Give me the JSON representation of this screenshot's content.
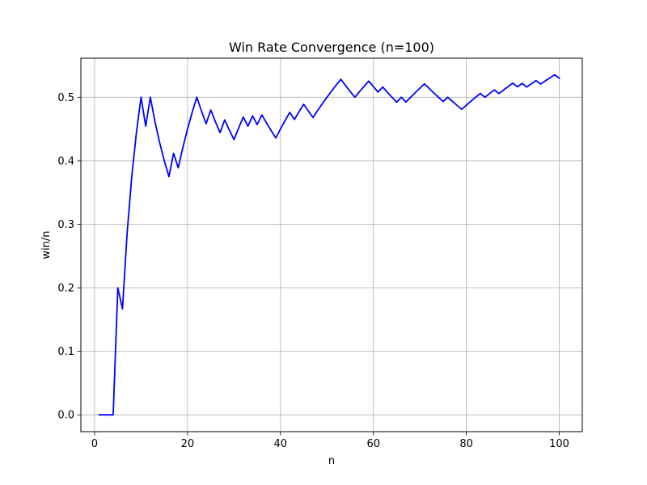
{
  "chart_data": {
    "type": "line",
    "title": "Win Rate Convergence (n=100)",
    "xlabel": "n",
    "ylabel": "win/n",
    "xlim": [
      -2.95,
      104.95
    ],
    "ylim": [
      -0.0265,
      0.5615
    ],
    "grid": true,
    "x_ticks": [
      0,
      20,
      40,
      60,
      80,
      100
    ],
    "x_tick_labels": [
      "0",
      "20",
      "40",
      "60",
      "80",
      "100"
    ],
    "y_ticks": [
      0.0,
      0.1,
      0.2,
      0.3,
      0.4,
      0.5
    ],
    "y_tick_labels": [
      "0.0",
      "0.1",
      "0.2",
      "0.3",
      "0.4",
      "0.5"
    ],
    "series": [
      {
        "color": "#0000ff",
        "x": [
          1,
          2,
          3,
          4,
          5,
          6,
          7,
          8,
          9,
          10,
          11,
          12,
          13,
          14,
          15,
          16,
          17,
          18,
          19,
          20,
          21,
          22,
          23,
          24,
          25,
          26,
          27,
          28,
          29,
          30,
          31,
          32,
          33,
          34,
          35,
          36,
          37,
          38,
          39,
          40,
          41,
          42,
          43,
          44,
          45,
          46,
          47,
          48,
          49,
          50,
          51,
          52,
          53,
          54,
          55,
          56,
          57,
          58,
          59,
          60,
          61,
          62,
          63,
          64,
          65,
          66,
          67,
          68,
          69,
          70,
          71,
          72,
          73,
          74,
          75,
          76,
          77,
          78,
          79,
          80,
          81,
          82,
          83,
          84,
          85,
          86,
          87,
          88,
          89,
          90,
          91,
          92,
          93,
          94,
          95,
          96,
          97,
          98,
          99,
          100
        ],
        "y": [
          0,
          0,
          0,
          0,
          0.2,
          0.1667,
          0.2857,
          0.375,
          0.4444,
          0.5,
          0.4545,
          0.5,
          0.4615,
          0.4286,
          0.4,
          0.375,
          0.4118,
          0.3889,
          0.4211,
          0.45,
          0.4762,
          0.5,
          0.4783,
          0.4583,
          0.48,
          0.4615,
          0.4444,
          0.4643,
          0.4483,
          0.4333,
          0.4516,
          0.4688,
          0.4545,
          0.4706,
          0.4571,
          0.4722,
          0.4595,
          0.4474,
          0.4359,
          0.45,
          0.4634,
          0.4762,
          0.4651,
          0.4773,
          0.4889,
          0.4783,
          0.4681,
          0.4792,
          0.4898,
          0.5,
          0.5098,
          0.5192,
          0.5283,
          0.5185,
          0.5091,
          0.5,
          0.5088,
          0.5172,
          0.5254,
          0.5167,
          0.5082,
          0.5161,
          0.5079,
          0.5,
          0.4923,
          0.5,
          0.4925,
          0.5,
          0.5072,
          0.5143,
          0.5211,
          0.5139,
          0.5068,
          0.5,
          0.4933,
          0.5,
          0.4935,
          0.4872,
          0.481,
          0.4875,
          0.4938,
          0.5,
          0.506,
          0.5,
          0.5059,
          0.5116,
          0.5057,
          0.5114,
          0.5169,
          0.5222,
          0.5165,
          0.5217,
          0.5161,
          0.5213,
          0.5263,
          0.5208,
          0.5258,
          0.5306,
          0.5354,
          0.53
        ]
      }
    ]
  }
}
